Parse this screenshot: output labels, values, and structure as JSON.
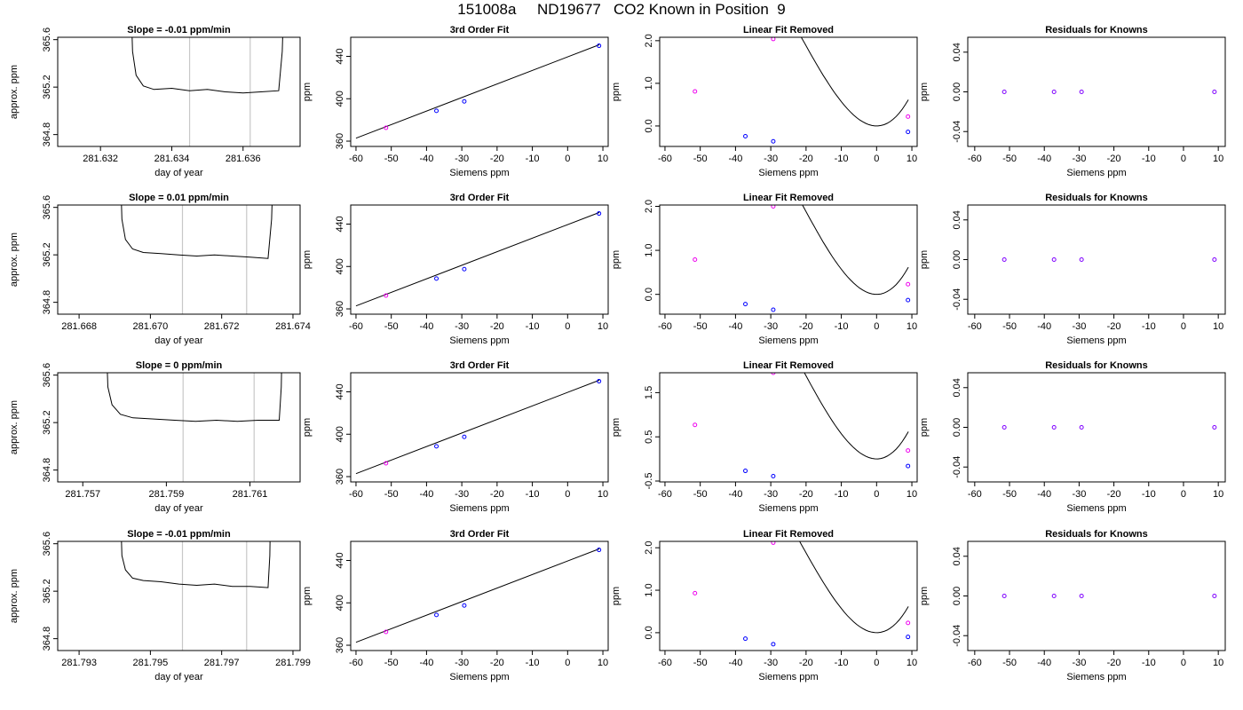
{
  "page": {
    "title": "151008a     ND19677   CO2 Known in Position  9"
  },
  "styles": {
    "raw_line_color": "#000000",
    "vline_color": "#c8c8c8",
    "fit_line_color": "#000000",
    "point_blue": "#0000ff",
    "point_magenta": "#ee00ee",
    "point_purple": "#7f00ff"
  },
  "chart_data": [
    {
      "type": "line",
      "title": "Slope =  -0.01  ppm/min",
      "xlabel": "day of year",
      "ylabel": "approx. ppm",
      "xlim": [
        281.6308,
        281.6376
      ],
      "ylim": [
        364.7,
        365.62
      ],
      "xticks": [
        281.632,
        281.634,
        281.636
      ],
      "xtick_labels": [
        "281.632",
        "281.634",
        "281.636"
      ],
      "yticks": [
        364.8,
        365.2,
        365.6
      ],
      "ytick_labels": [
        "364.8",
        "365.2",
        "365.6"
      ],
      "vlines": [
        281.6345,
        281.6362
      ],
      "x": [
        281.6328,
        281.6329,
        281.633,
        281.6332,
        281.6335,
        281.634,
        281.6345,
        281.635,
        281.6355,
        281.636,
        281.6365,
        281.637,
        281.6371,
        281.6372
      ],
      "y": [
        366.5,
        365.5,
        365.3,
        365.21,
        365.18,
        365.19,
        365.17,
        365.18,
        365.16,
        365.15,
        365.16,
        365.17,
        365.5,
        366.5
      ]
    },
    {
      "type": "scatter",
      "title": "3rd Order Fit",
      "xlabel": "Siemens ppm",
      "ylabel": "ppm",
      "xlim": [
        -61.5,
        11.5
      ],
      "ylim": [
        355,
        458
      ],
      "xticks": [
        -60,
        -50,
        -40,
        -30,
        -20,
        -10,
        0,
        10
      ],
      "yticks": [
        360,
        400,
        440
      ],
      "points": [
        {
          "x": -51.5,
          "y": 372.6,
          "cls": "m"
        },
        {
          "x": -37.2,
          "y": 388.6,
          "cls": "b"
        },
        {
          "x": -29.3,
          "y": 397.5,
          "cls": "b"
        },
        {
          "x": 8.9,
          "y": 450.0,
          "cls": "b"
        }
      ],
      "fit_x": [
        -60,
        9
      ],
      "fit_y": [
        362.8,
        451.0
      ]
    },
    {
      "type": "scatter",
      "title": "Linear Fit Removed",
      "xlabel": "Siemens ppm",
      "ylabel": "ppm",
      "xlim": [
        -61.5,
        11.5
      ],
      "ylim": [
        -0.48,
        2.08
      ],
      "xticks": [
        -60,
        -50,
        -40,
        -30,
        -20,
        -10,
        0,
        10
      ],
      "yticks": [
        0.0,
        1.0,
        2.0
      ],
      "ytick_labels": [
        "0.0",
        "1.0",
        "2.0"
      ],
      "points": [
        {
          "x": -51.5,
          "y": 0.81,
          "cls": "m"
        },
        {
          "x": -37.2,
          "y": -0.24,
          "cls": "b"
        },
        {
          "x": -29.3,
          "y": -0.36,
          "cls": "b"
        },
        {
          "x": 8.9,
          "y": -0.14,
          "cls": "b"
        },
        {
          "x": -29.3,
          "y": 2.04,
          "cls": "m"
        },
        {
          "x": 8.9,
          "y": 0.22,
          "cls": "m"
        }
      ],
      "curve_a": 0.0001,
      "curve_b": 0.0067,
      "curve_x": [
        -60,
        9
      ]
    },
    {
      "type": "scatter",
      "title": "Residuals for Knowns",
      "xlabel": "Siemens ppm",
      "ylabel": "ppm",
      "xlim": [
        -62,
        12
      ],
      "ylim": [
        -0.055,
        0.055
      ],
      "xticks": [
        -60,
        -50,
        -40,
        -30,
        -20,
        -10,
        0,
        10
      ],
      "yticks": [
        -0.04,
        0.0,
        0.04
      ],
      "ytick_labels": [
        "-0.04",
        "0.00",
        "0.04"
      ],
      "points": [
        {
          "x": -51.5,
          "y": 0,
          "cls": "p"
        },
        {
          "x": -37.2,
          "y": 0,
          "cls": "p"
        },
        {
          "x": -29.3,
          "y": 0,
          "cls": "p"
        },
        {
          "x": 8.9,
          "y": 0,
          "cls": "p"
        }
      ]
    },
    {
      "type": "line",
      "title": "Slope =  0.01  ppm/min",
      "xlabel": "day of year",
      "ylabel": "approx. ppm",
      "xlim": [
        281.6674,
        281.6742
      ],
      "ylim": [
        364.7,
        365.62
      ],
      "xticks": [
        281.668,
        281.67,
        281.672,
        281.674
      ],
      "xtick_labels": [
        "281.668",
        "281.670",
        "281.672",
        "281.674"
      ],
      "yticks": [
        364.8,
        365.2,
        365.6
      ],
      "ytick_labels": [
        "364.8",
        "365.2",
        "365.6"
      ],
      "vlines": [
        281.6709,
        281.6727
      ],
      "x": [
        281.6691,
        281.6692,
        281.6693,
        281.6695,
        281.6698,
        281.6703,
        281.6708,
        281.6713,
        281.6718,
        281.6723,
        281.6728,
        281.6733,
        281.6734,
        281.6735
      ],
      "y": [
        366.5,
        365.5,
        365.33,
        365.25,
        365.22,
        365.21,
        365.2,
        365.19,
        365.2,
        365.19,
        365.18,
        365.17,
        365.5,
        366.5
      ]
    },
    {
      "type": "scatter",
      "title": "3rd Order Fit",
      "xlabel": "Siemens ppm",
      "ylabel": "ppm",
      "xlim": [
        -61.5,
        11.5
      ],
      "ylim": [
        355,
        458
      ],
      "xticks": [
        -60,
        -50,
        -40,
        -30,
        -20,
        -10,
        0,
        10
      ],
      "yticks": [
        360,
        400,
        440
      ],
      "points": [
        {
          "x": -51.5,
          "y": 372.6,
          "cls": "m"
        },
        {
          "x": -37.2,
          "y": 388.6,
          "cls": "b"
        },
        {
          "x": -29.3,
          "y": 397.5,
          "cls": "b"
        },
        {
          "x": 8.9,
          "y": 450.0,
          "cls": "b"
        }
      ],
      "fit_x": [
        -60,
        9
      ],
      "fit_y": [
        362.8,
        451.0
      ]
    },
    {
      "type": "scatter",
      "title": "Linear Fit Removed",
      "xlabel": "Siemens ppm",
      "ylabel": "ppm",
      "xlim": [
        -61.5,
        11.5
      ],
      "ylim": [
        -0.45,
        2.03
      ],
      "xticks": [
        -60,
        -50,
        -40,
        -30,
        -20,
        -10,
        0,
        10
      ],
      "yticks": [
        0.0,
        1.0,
        2.0
      ],
      "ytick_labels": [
        "0.0",
        "1.0",
        "2.0"
      ],
      "points": [
        {
          "x": -51.5,
          "y": 0.79,
          "cls": "m"
        },
        {
          "x": -37.2,
          "y": -0.22,
          "cls": "b"
        },
        {
          "x": -29.3,
          "y": -0.35,
          "cls": "b"
        },
        {
          "x": 8.9,
          "y": -0.13,
          "cls": "b"
        },
        {
          "x": -29.3,
          "y": 2.0,
          "cls": "m"
        },
        {
          "x": 8.9,
          "y": 0.23,
          "cls": "m"
        }
      ],
      "curve_a": 0.0001,
      "curve_b": 0.0067,
      "curve_x": [
        -60,
        9
      ]
    },
    {
      "type": "scatter",
      "title": "Residuals for Knowns",
      "xlabel": "Siemens ppm",
      "ylabel": "ppm",
      "xlim": [
        -62,
        12
      ],
      "ylim": [
        -0.055,
        0.055
      ],
      "xticks": [
        -60,
        -50,
        -40,
        -30,
        -20,
        -10,
        0,
        10
      ],
      "yticks": [
        -0.04,
        0.0,
        0.04
      ],
      "ytick_labels": [
        "-0.04",
        "0.00",
        "0.04"
      ],
      "points": [
        {
          "x": -51.5,
          "y": 0,
          "cls": "p"
        },
        {
          "x": -37.2,
          "y": 0,
          "cls": "p"
        },
        {
          "x": -29.3,
          "y": 0,
          "cls": "p"
        },
        {
          "x": 8.9,
          "y": 0,
          "cls": "p"
        }
      ]
    },
    {
      "type": "line",
      "title": "Slope =  0  ppm/min",
      "xlabel": "day of year",
      "ylabel": "approx. ppm",
      "xlim": [
        281.7564,
        281.7622
      ],
      "ylim": [
        364.7,
        365.62
      ],
      "xticks": [
        281.757,
        281.759,
        281.761
      ],
      "xtick_labels": [
        "281.757",
        "281.759",
        "281.761"
      ],
      "yticks": [
        364.8,
        365.2,
        365.6
      ],
      "ytick_labels": [
        "364.8",
        "365.2",
        "365.6"
      ],
      "vlines": [
        281.7594,
        281.7611
      ],
      "x": [
        281.7575,
        281.7576,
        281.7577,
        281.7579,
        281.7582,
        281.7587,
        281.7592,
        281.7597,
        281.7602,
        281.7607,
        281.7612,
        281.7617,
        281.76175,
        281.7618
      ],
      "y": [
        366.5,
        365.5,
        365.35,
        365.27,
        365.24,
        365.23,
        365.22,
        365.21,
        365.22,
        365.21,
        365.22,
        365.22,
        365.5,
        366.5
      ]
    },
    {
      "type": "scatter",
      "title": "3rd Order Fit",
      "xlabel": "Siemens ppm",
      "ylabel": "ppm",
      "xlim": [
        -61.5,
        11.5
      ],
      "ylim": [
        355,
        458
      ],
      "xticks": [
        -60,
        -50,
        -40,
        -30,
        -20,
        -10,
        0,
        10
      ],
      "yticks": [
        360,
        400,
        440
      ],
      "points": [
        {
          "x": -51.5,
          "y": 372.6,
          "cls": "m"
        },
        {
          "x": -37.2,
          "y": 388.6,
          "cls": "b"
        },
        {
          "x": -29.3,
          "y": 397.5,
          "cls": "b"
        },
        {
          "x": 8.9,
          "y": 450.0,
          "cls": "b"
        }
      ],
      "fit_x": [
        -60,
        9
      ],
      "fit_y": [
        362.8,
        451.0
      ]
    },
    {
      "type": "scatter",
      "title": "Linear Fit Removed",
      "xlabel": "Siemens ppm",
      "ylabel": "ppm",
      "xlim": [
        -61.5,
        11.5
      ],
      "ylim": [
        -0.52,
        1.95
      ],
      "xticks": [
        -60,
        -50,
        -40,
        -30,
        -20,
        -10,
        0,
        10
      ],
      "yticks": [
        -0.5,
        0.5,
        1.5
      ],
      "ytick_labels": [
        "-0.5",
        "0.5",
        "1.5"
      ],
      "points": [
        {
          "x": -51.5,
          "y": 0.77,
          "cls": "m"
        },
        {
          "x": -37.2,
          "y": -0.27,
          "cls": "b"
        },
        {
          "x": -29.3,
          "y": -0.39,
          "cls": "b"
        },
        {
          "x": 8.9,
          "y": -0.16,
          "cls": "b"
        },
        {
          "x": -29.3,
          "y": 1.95,
          "cls": "m"
        },
        {
          "x": 8.9,
          "y": 0.19,
          "cls": "m"
        }
      ],
      "curve_a": 0.0001,
      "curve_b": 0.0067,
      "curve_x": [
        -60,
        9
      ]
    },
    {
      "type": "scatter",
      "title": "Residuals for Knowns",
      "xlabel": "Siemens ppm",
      "ylabel": "ppm",
      "xlim": [
        -62,
        12
      ],
      "ylim": [
        -0.055,
        0.055
      ],
      "xticks": [
        -60,
        -50,
        -40,
        -30,
        -20,
        -10,
        0,
        10
      ],
      "yticks": [
        -0.04,
        0.0,
        0.04
      ],
      "ytick_labels": [
        "-0.04",
        "0.00",
        "0.04"
      ],
      "points": [
        {
          "x": -51.5,
          "y": 0,
          "cls": "p"
        },
        {
          "x": -37.2,
          "y": 0,
          "cls": "p"
        },
        {
          "x": -29.3,
          "y": 0,
          "cls": "p"
        },
        {
          "x": 8.9,
          "y": 0,
          "cls": "p"
        }
      ]
    },
    {
      "type": "line",
      "title": "Slope =  -0.01  ppm/min",
      "xlabel": "day of year",
      "ylabel": "approx. ppm",
      "xlim": [
        281.7924,
        281.7992
      ],
      "ylim": [
        364.7,
        365.62
      ],
      "xticks": [
        281.793,
        281.795,
        281.797,
        281.799
      ],
      "xtick_labels": [
        "281.793",
        "281.795",
        "281.797",
        "281.799"
      ],
      "yticks": [
        364.8,
        365.2,
        365.6
      ],
      "ytick_labels": [
        "364.8",
        "365.2",
        "365.6"
      ],
      "vlines": [
        281.7959,
        281.7977
      ],
      "x": [
        281.7941,
        281.7942,
        281.7943,
        281.7945,
        281.7948,
        281.7953,
        281.7958,
        281.7963,
        281.7968,
        281.7973,
        281.7978,
        281.7983,
        281.79835,
        281.7984
      ],
      "y": [
        366.5,
        365.5,
        365.38,
        365.31,
        365.29,
        365.28,
        365.26,
        365.25,
        365.26,
        365.24,
        365.24,
        365.23,
        365.5,
        366.5
      ]
    },
    {
      "type": "scatter",
      "title": "3rd Order Fit",
      "xlabel": "Siemens ppm",
      "ylabel": "ppm",
      "xlim": [
        -61.5,
        11.5
      ],
      "ylim": [
        355,
        458
      ],
      "xticks": [
        -60,
        -50,
        -40,
        -30,
        -20,
        -10,
        0,
        10
      ],
      "yticks": [
        360,
        400,
        440
      ],
      "points": [
        {
          "x": -51.5,
          "y": 372.6,
          "cls": "m"
        },
        {
          "x": -37.2,
          "y": 388.6,
          "cls": "b"
        },
        {
          "x": -29.3,
          "y": 397.5,
          "cls": "b"
        },
        {
          "x": 8.9,
          "y": 450.0,
          "cls": "b"
        }
      ],
      "fit_x": [
        -60,
        9
      ],
      "fit_y": [
        362.8,
        451.0
      ]
    },
    {
      "type": "scatter",
      "title": "Linear Fit Removed",
      "xlabel": "Siemens ppm",
      "ylabel": "ppm",
      "xlim": [
        -61.5,
        11.5
      ],
      "ylim": [
        -0.42,
        2.15
      ],
      "xticks": [
        -60,
        -50,
        -40,
        -30,
        -20,
        -10,
        0,
        10
      ],
      "yticks": [
        0.0,
        1.0,
        2.0
      ],
      "ytick_labels": [
        "0.0",
        "1.0",
        "2.0"
      ],
      "points": [
        {
          "x": -51.5,
          "y": 0.93,
          "cls": "m"
        },
        {
          "x": -37.2,
          "y": -0.14,
          "cls": "b"
        },
        {
          "x": -29.3,
          "y": -0.27,
          "cls": "b"
        },
        {
          "x": 8.9,
          "y": -0.1,
          "cls": "b"
        },
        {
          "x": -29.3,
          "y": 2.12,
          "cls": "m"
        },
        {
          "x": 8.9,
          "y": 0.23,
          "cls": "m"
        }
      ],
      "curve_a": 0.0001,
      "curve_b": 0.0067,
      "curve_x": [
        -60,
        9
      ]
    },
    {
      "type": "scatter",
      "title": "Residuals for Knowns",
      "xlabel": "Siemens ppm",
      "ylabel": "ppm",
      "xlim": [
        -62,
        12
      ],
      "ylim": [
        -0.055,
        0.055
      ],
      "xticks": [
        -60,
        -50,
        -40,
        -30,
        -20,
        -10,
        0,
        10
      ],
      "yticks": [
        -0.04,
        0.0,
        0.04
      ],
      "ytick_labels": [
        "-0.04",
        "0.00",
        "0.04"
      ],
      "points": [
        {
          "x": -51.5,
          "y": 0,
          "cls": "p"
        },
        {
          "x": -37.2,
          "y": 0,
          "cls": "p"
        },
        {
          "x": -29.3,
          "y": 0,
          "cls": "p"
        },
        {
          "x": 8.9,
          "y": 0,
          "cls": "p"
        }
      ]
    }
  ]
}
